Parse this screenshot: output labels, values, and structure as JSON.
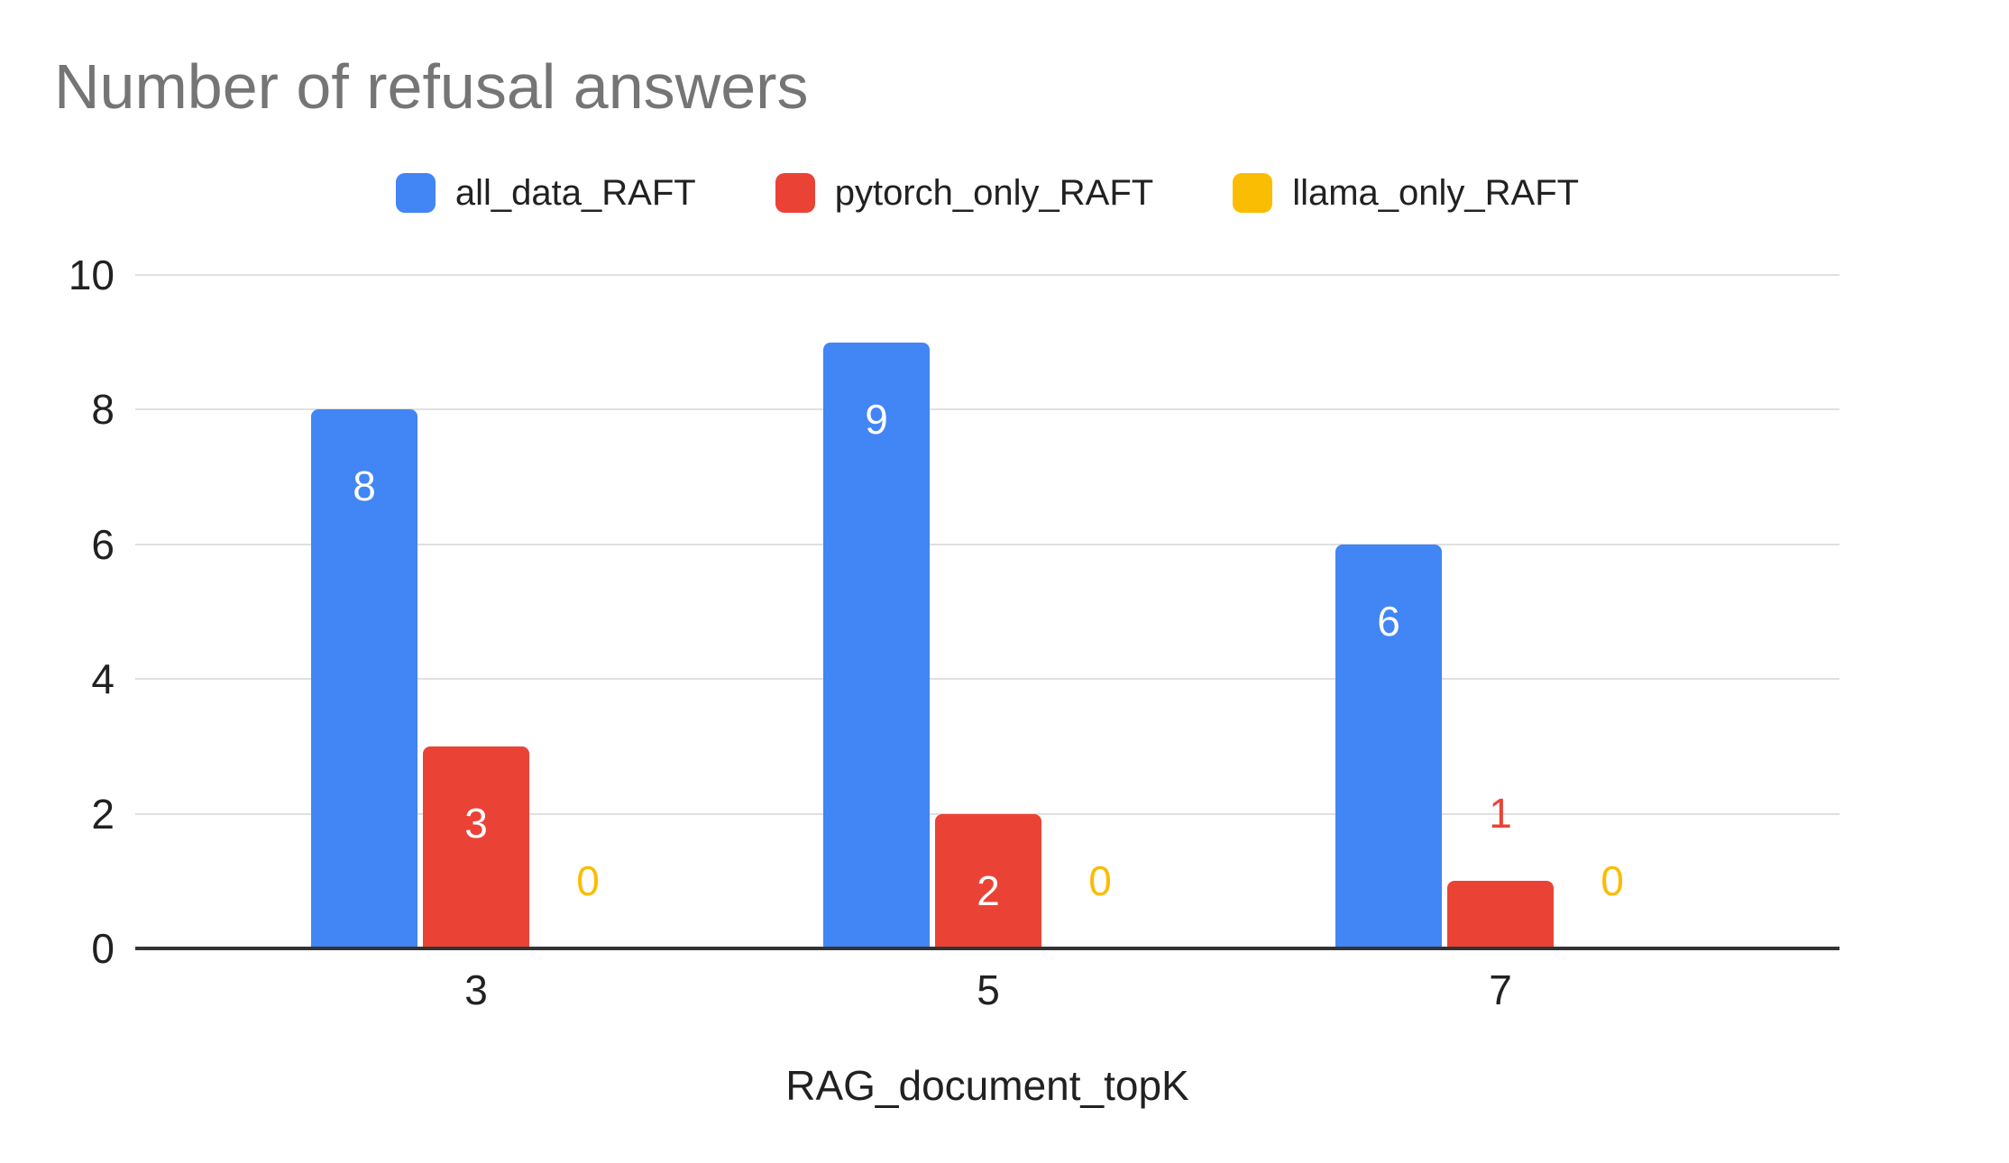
{
  "page": {
    "background": "#FFFFFF"
  },
  "chart_data": {
    "type": "bar",
    "title": "Number of refusal answers",
    "title_color": "#757575",
    "categories": [
      "3",
      "5",
      "7"
    ],
    "series": [
      {
        "name": "all_data_RAFT",
        "color": "#4285F4",
        "values": [
          8,
          9,
          6
        ]
      },
      {
        "name": "pytorch_only_RAFT",
        "color": "#EA4335",
        "values": [
          3,
          2,
          1
        ]
      },
      {
        "name": "llama_only_RAFT",
        "color": "#FBBC04",
        "values": [
          0,
          0,
          0
        ]
      }
    ],
    "xlabel": "RAG_document_topK",
    "ylabel": "",
    "ylim": [
      0,
      10
    ],
    "yticks": [
      0,
      2,
      4,
      6,
      8,
      10
    ],
    "grid": true,
    "legend_position": "top",
    "gridline_color": "#E0E0E0",
    "axis_baseline_color": "#333333",
    "tick_label_color": "#212121",
    "data_label_inside_color": "#FFFFFF"
  }
}
